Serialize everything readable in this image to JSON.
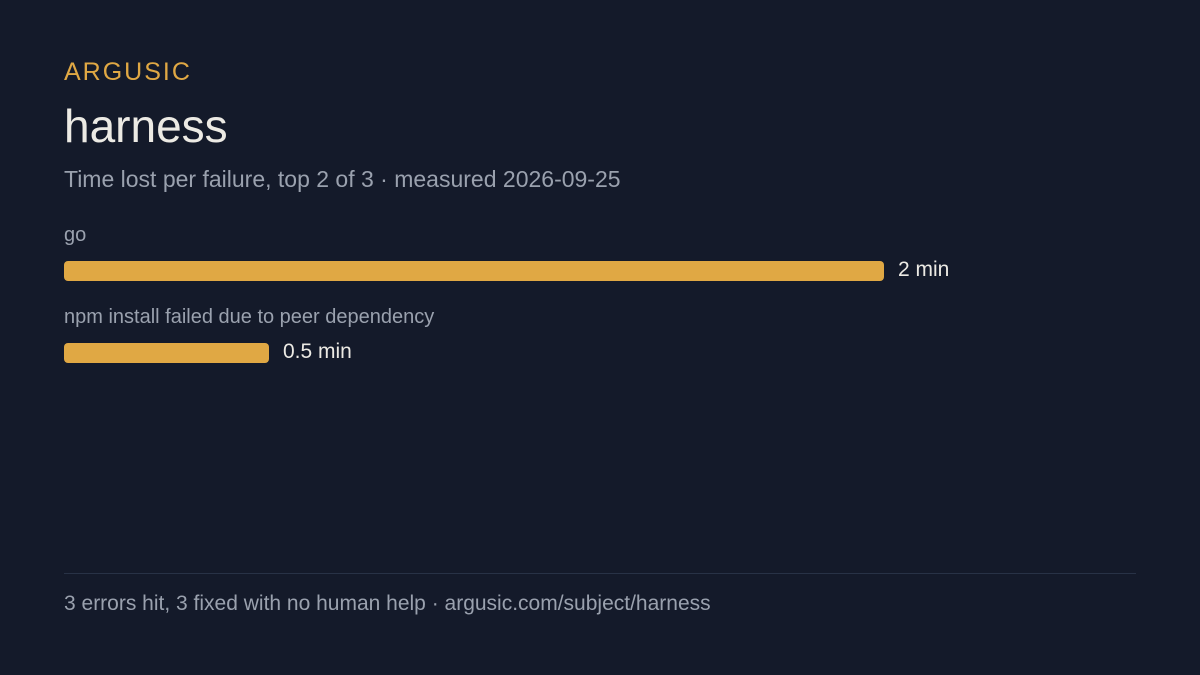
{
  "header": {
    "brand": "ARGUSIC",
    "title": "harness",
    "subtitle": "Time lost per failure, top 2 of 3 · measured 2026-09-25"
  },
  "chart_data": {
    "type": "bar",
    "orientation": "horizontal",
    "categories": [
      "go",
      "npm install failed due to peer dependency"
    ],
    "values": [
      2,
      0.5
    ],
    "value_labels": [
      "2 min",
      "0.5 min"
    ],
    "unit": "min",
    "xlim": [
      0,
      2
    ],
    "grid": false,
    "bar_color": "#e0a844"
  },
  "footer": {
    "text": "3 errors hit, 3 fixed with no human help · argusic.com/subject/harness"
  },
  "colors": {
    "background": "#141a2a",
    "accent": "#e0a844",
    "muted_text": "#9aa1ae",
    "text": "#eceae4"
  }
}
